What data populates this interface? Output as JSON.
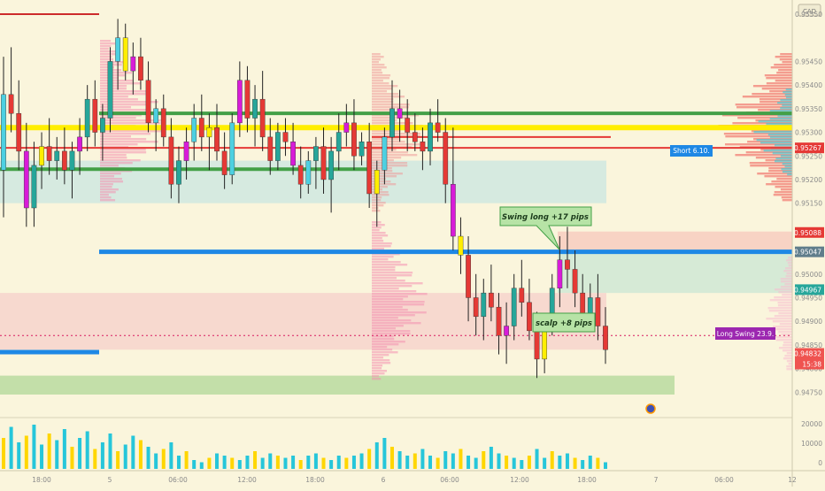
{
  "chart_data": {
    "type": "candlestick",
    "currency": "CAD",
    "price_axis": {
      "ticks": [
        "0.95550",
        "0.95450",
        "0.95400",
        "0.95350",
        "0.95300",
        "0.95250",
        "0.95200",
        "0.95150",
        "0.95050",
        "0.95000",
        "0.94950",
        "0.94900",
        "0.94850",
        "0.94800",
        "0.94750"
      ],
      "ylim": [
        0.947,
        0.9558
      ]
    },
    "price_badges": [
      {
        "label": "0.95267",
        "value": 0.95267,
        "color": "#e53935"
      },
      {
        "label": "0.95088",
        "value": 0.95088,
        "color": "#e53935"
      },
      {
        "label": "0.95047",
        "value": 0.95047,
        "color": "#607d8b"
      },
      {
        "label": "0.94967",
        "value": 0.94967,
        "color": "#26a69a"
      },
      {
        "label": "0.94832",
        "value": 0.94832,
        "color": "#ef5350"
      },
      {
        "label": "15:38",
        "value": 0.94812,
        "color": "#ef5350"
      }
    ],
    "time_axis": [
      "18:00",
      "5",
      "06:00",
      "12:00",
      "18:00",
      "6",
      "06:00",
      "12:00",
      "18:00",
      "7",
      "06:00",
      "12"
    ],
    "volume_axis": [
      "20000",
      "10000",
      "0"
    ],
    "annotations": [
      {
        "text": "Swing long +17 pips",
        "type": "callout"
      },
      {
        "text": "scalp +8 pips",
        "type": "callout"
      },
      {
        "text": "Short 6.10.",
        "type": "label"
      },
      {
        "text": "Long Swing  23.9.",
        "type": "label"
      }
    ],
    "horizontal_levels": [
      {
        "value": 0.9555,
        "color": "#cc2b2b"
      },
      {
        "value": 0.9534,
        "color": "#43a047"
      },
      {
        "value": 0.9531,
        "color": "#ffee00"
      },
      {
        "value": 0.9529,
        "color": "#e53935"
      },
      {
        "value": 0.95267,
        "color": "#e53935"
      },
      {
        "value": 0.95222,
        "color": "#43a047"
      },
      {
        "value": 0.95047,
        "color": "#1e88e5"
      },
      {
        "value": 0.9487,
        "color": "#d81b60"
      }
    ],
    "zones": [
      {
        "from": 0.9515,
        "to": 0.9524,
        "color": "#cfe8e0"
      },
      {
        "from": 0.9505,
        "to": 0.9509,
        "color": "#f7cdbf"
      },
      {
        "from": 0.9496,
        "to": 0.9505,
        "color": "#cfe8d5"
      },
      {
        "from": 0.9484,
        "to": 0.9496,
        "color": "#f6d4cc"
      },
      {
        "from": 0.94745,
        "to": 0.94785,
        "color": "#b9dba0"
      }
    ],
    "candles": [
      [
        0.9522,
        0.9546,
        0.9512,
        0.9538
      ],
      [
        0.9538,
        0.9548,
        0.953,
        0.9534
      ],
      [
        0.9534,
        0.9541,
        0.9522,
        0.9526
      ],
      [
        0.9526,
        0.9532,
        0.951,
        0.9514
      ],
      [
        0.9514,
        0.9528,
        0.951,
        0.9523
      ],
      [
        0.9523,
        0.953,
        0.9518,
        0.9527
      ],
      [
        0.9527,
        0.9533,
        0.9521,
        0.9524
      ],
      [
        0.9524,
        0.9529,
        0.952,
        0.9526
      ],
      [
        0.9526,
        0.9531,
        0.9519,
        0.9522
      ],
      [
        0.9522,
        0.9528,
        0.9516,
        0.9526
      ],
      [
        0.9526,
        0.9533,
        0.9521,
        0.9529
      ],
      [
        0.9529,
        0.954,
        0.9526,
        0.9537
      ],
      [
        0.9537,
        0.9541,
        0.9527,
        0.953
      ],
      [
        0.953,
        0.9536,
        0.9524,
        0.9533
      ],
      [
        0.9533,
        0.9548,
        0.953,
        0.9545
      ],
      [
        0.9545,
        0.9554,
        0.9539,
        0.955
      ],
      [
        0.955,
        0.9553,
        0.9541,
        0.9543
      ],
      [
        0.9543,
        0.9549,
        0.9538,
        0.9546
      ],
      [
        0.9546,
        0.955,
        0.9539,
        0.9541
      ],
      [
        0.9541,
        0.9545,
        0.953,
        0.9532
      ],
      [
        0.9532,
        0.9537,
        0.9526,
        0.9535
      ],
      [
        0.9535,
        0.9538,
        0.9527,
        0.9529
      ],
      [
        0.9529,
        0.9533,
        0.9516,
        0.9519
      ],
      [
        0.9519,
        0.9527,
        0.9515,
        0.9524
      ],
      [
        0.9524,
        0.9531,
        0.952,
        0.9528
      ],
      [
        0.9528,
        0.9536,
        0.9524,
        0.9533
      ],
      [
        0.9533,
        0.9538,
        0.9526,
        0.9529
      ],
      [
        0.9529,
        0.9534,
        0.9522,
        0.9531
      ],
      [
        0.9531,
        0.9536,
        0.9524,
        0.9526
      ],
      [
        0.9526,
        0.953,
        0.9518,
        0.9521
      ],
      [
        0.9521,
        0.9534,
        0.9519,
        0.9532
      ],
      [
        0.9532,
        0.9545,
        0.9529,
        0.9541
      ],
      [
        0.9541,
        0.9544,
        0.953,
        0.9533
      ],
      [
        0.9533,
        0.954,
        0.9527,
        0.9537
      ],
      [
        0.9537,
        0.9543,
        0.9526,
        0.9529
      ],
      [
        0.9529,
        0.9533,
        0.9521,
        0.9524
      ],
      [
        0.9524,
        0.9532,
        0.9522,
        0.953
      ],
      [
        0.953,
        0.9533,
        0.9525,
        0.9528
      ],
      [
        0.9528,
        0.9532,
        0.9521,
        0.9523
      ],
      [
        0.9523,
        0.9527,
        0.9516,
        0.9519
      ],
      [
        0.9519,
        0.9526,
        0.9517,
        0.9524
      ],
      [
        0.9524,
        0.9529,
        0.9518,
        0.9527
      ],
      [
        0.9527,
        0.9531,
        0.9517,
        0.952
      ],
      [
        0.952,
        0.9529,
        0.9513,
        0.9526
      ],
      [
        0.9526,
        0.9534,
        0.9522,
        0.953
      ],
      [
        0.953,
        0.9536,
        0.9527,
        0.9532
      ],
      [
        0.9532,
        0.9537,
        0.9522,
        0.9525
      ],
      [
        0.9525,
        0.953,
        0.9523,
        0.9528
      ],
      [
        0.9528,
        0.9532,
        0.9514,
        0.9517
      ],
      [
        0.9517,
        0.9524,
        0.951,
        0.9522
      ],
      [
        0.9522,
        0.9531,
        0.9519,
        0.9529
      ],
      [
        0.9529,
        0.9541,
        0.9526,
        0.9535
      ],
      [
        0.9535,
        0.9539,
        0.9528,
        0.9533
      ],
      [
        0.9533,
        0.9537,
        0.9526,
        0.953
      ],
      [
        0.953,
        0.9534,
        0.9526,
        0.9528
      ],
      [
        0.9528,
        0.9531,
        0.9522,
        0.9526
      ],
      [
        0.9526,
        0.9535,
        0.9523,
        0.9532
      ],
      [
        0.9532,
        0.9537,
        0.9528,
        0.953
      ],
      [
        0.953,
        0.9533,
        0.9515,
        0.9519
      ],
      [
        0.9519,
        0.9531,
        0.9505,
        0.9508
      ],
      [
        0.9508,
        0.9512,
        0.95,
        0.9504
      ],
      [
        0.9504,
        0.9508,
        0.949,
        0.9495
      ],
      [
        0.9495,
        0.95,
        0.9487,
        0.9491
      ],
      [
        0.9491,
        0.9499,
        0.9486,
        0.9496
      ],
      [
        0.9496,
        0.9502,
        0.949,
        0.9493
      ],
      [
        0.9493,
        0.9496,
        0.9483,
        0.9487
      ],
      [
        0.9487,
        0.9494,
        0.9481,
        0.9489
      ],
      [
        0.9489,
        0.95,
        0.9486,
        0.9497
      ],
      [
        0.9497,
        0.9503,
        0.9491,
        0.9494
      ],
      [
        0.9494,
        0.9499,
        0.9486,
        0.9488
      ],
      [
        0.9488,
        0.9492,
        0.9478,
        0.9482
      ],
      [
        0.9482,
        0.9491,
        0.9479,
        0.9489
      ],
      [
        0.9489,
        0.95,
        0.9487,
        0.9497
      ],
      [
        0.9497,
        0.9508,
        0.9493,
        0.9503
      ],
      [
        0.9503,
        0.951,
        0.9497,
        0.9501
      ],
      [
        0.9501,
        0.9505,
        0.9493,
        0.9496
      ],
      [
        0.9496,
        0.95,
        0.9488,
        0.9491
      ],
      [
        0.9491,
        0.9498,
        0.9489,
        0.9495
      ],
      [
        0.9495,
        0.95,
        0.9486,
        0.9489
      ],
      [
        0.9489,
        0.9493,
        0.9481,
        0.9484
      ]
    ],
    "volumes": [
      14,
      19,
      12,
      15,
      20,
      11,
      16,
      13,
      18,
      10,
      14,
      17,
      9,
      12,
      16,
      8,
      11,
      15,
      13,
      10,
      7,
      9,
      12,
      6,
      8,
      4,
      3,
      5,
      7,
      6,
      5,
      4,
      6,
      8,
      5,
      7,
      6,
      5,
      6,
      4,
      6,
      7,
      5,
      4,
      6,
      5,
      6,
      7,
      9,
      12,
      14,
      10,
      8,
      6,
      7,
      9,
      6,
      5,
      8,
      7,
      9,
      6,
      5,
      8,
      10,
      7,
      6,
      5,
      4,
      6,
      9,
      5,
      8,
      6,
      7,
      5,
      4,
      6,
      5,
      3
    ],
    "volume_ylim": [
      0,
      22000
    ],
    "volume_scale": 1000
  }
}
